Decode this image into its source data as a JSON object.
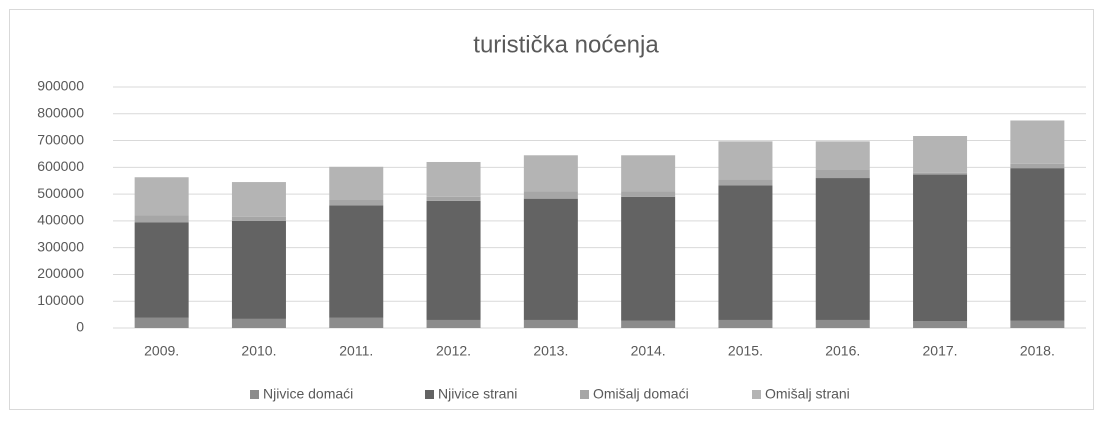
{
  "chart_data": {
    "type": "stacked_bar",
    "title": "turistička noćenja",
    "categories": [
      "2009.",
      "2010.",
      "2011.",
      "2012.",
      "2013.",
      "2014.",
      "2015.",
      "2016.",
      "2017.",
      "2018."
    ],
    "series": [
      {
        "name": "Njivice domaći",
        "color": "#8c8c8c",
        "values": [
          38000,
          34000,
          38000,
          30000,
          30000,
          28000,
          30000,
          30000,
          25000,
          28000
        ]
      },
      {
        "name": "Njivice strani",
        "color": "#636363",
        "values": [
          357000,
          366000,
          420000,
          445000,
          453000,
          462000,
          503000,
          530000,
          548000,
          569000
        ]
      },
      {
        "name": "Omišalj domaći",
        "color": "#a6a6a6",
        "values": [
          25000,
          15000,
          20000,
          15000,
          27000,
          20000,
          22000,
          30000,
          7000,
          16000
        ]
      },
      {
        "name": "Omišalj strani",
        "color": "#b4b4b4",
        "values": [
          143000,
          130000,
          124000,
          130000,
          135000,
          135000,
          142000,
          107000,
          137000,
          162000
        ]
      }
    ],
    "ylim": [
      0,
      900000
    ],
    "yticks": [
      0,
      100000,
      200000,
      300000,
      400000,
      500000,
      600000,
      700000,
      800000,
      900000
    ],
    "grid": true,
    "legend": "bottom"
  }
}
